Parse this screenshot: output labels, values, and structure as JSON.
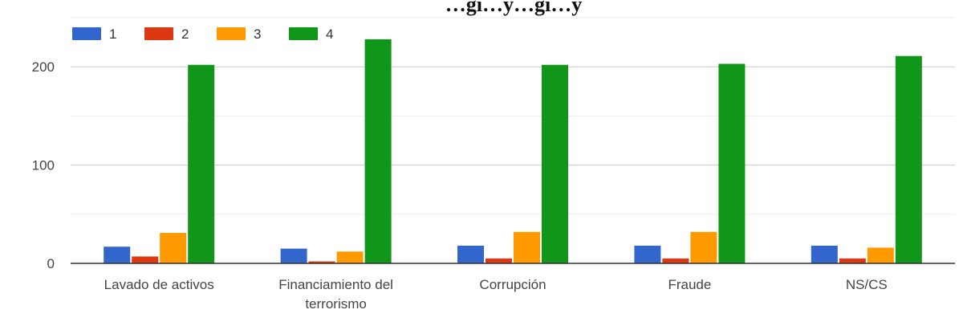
{
  "chart_data": {
    "type": "bar",
    "title": "…gi…y…gi…y",
    "xlabel": "",
    "ylabel": "",
    "categories": [
      "Lavado de activos",
      "Financiamiento del terrorismo",
      "Corrupción",
      "Fraude",
      "NS/CS"
    ],
    "category_lines": [
      [
        "Lavado de activos"
      ],
      [
        "Financiamiento del",
        "terrorismo"
      ],
      [
        "Corrupción"
      ],
      [
        "Fraude"
      ],
      [
        "NS/CS"
      ]
    ],
    "series": [
      {
        "name": "1",
        "color": "#3366cc",
        "values": [
          17,
          15,
          18,
          18,
          18
        ]
      },
      {
        "name": "2",
        "color": "#dc3912",
        "values": [
          7,
          2,
          5,
          5,
          5
        ]
      },
      {
        "name": "3",
        "color": "#ff9900",
        "values": [
          31,
          12,
          32,
          32,
          16
        ]
      },
      {
        "name": "4",
        "color": "#109618",
        "values": [
          202,
          228,
          202,
          203,
          211
        ]
      }
    ],
    "ylim": [
      0,
      250
    ],
    "yticks": [
      0,
      100,
      200
    ],
    "grid": true,
    "legend": "top-left"
  }
}
